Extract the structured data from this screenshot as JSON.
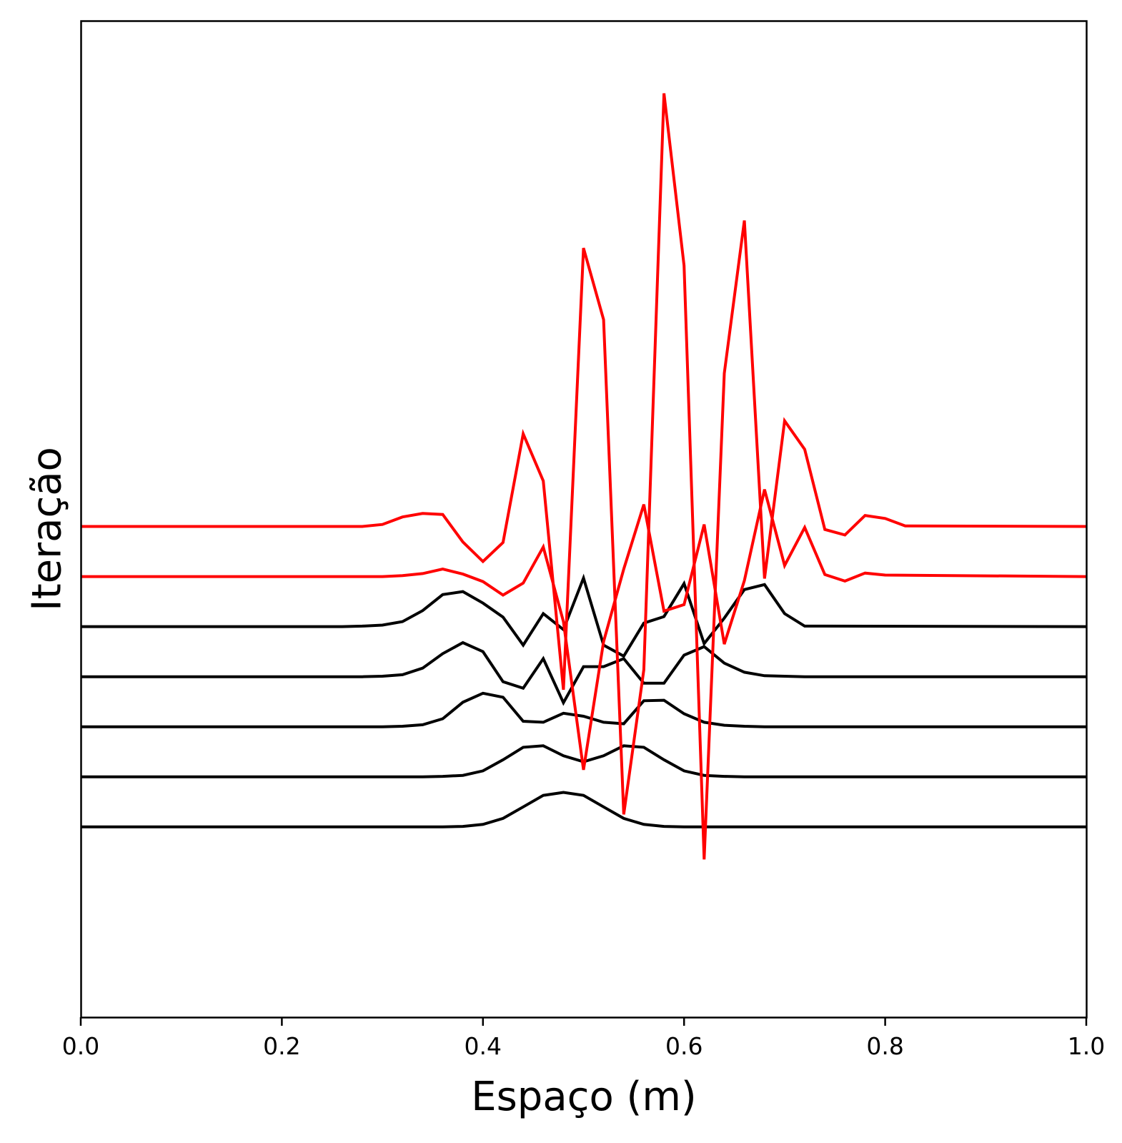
{
  "chart_data": {
    "type": "line",
    "title": "",
    "xlabel": "Espaço (m)",
    "ylabel": "Iteração",
    "xlim": [
      0.0,
      1.0
    ],
    "ylim": [
      -3.8,
      16.1
    ],
    "xticks": [
      0.0,
      0.2,
      0.4,
      0.6,
      0.8,
      1.0
    ],
    "xtick_labels": [
      "0.0",
      "0.2",
      "0.4",
      "0.6",
      "0.8",
      "1.0"
    ],
    "yticks_visible": false,
    "grid": false,
    "legend": "none",
    "x": [
      0.0,
      0.02,
      0.04,
      0.06,
      0.08,
      0.1,
      0.12,
      0.14,
      0.16,
      0.18,
      0.2,
      0.22,
      0.24,
      0.26,
      0.28,
      0.3,
      0.32,
      0.34,
      0.36,
      0.38,
      0.4,
      0.42,
      0.44,
      0.46,
      0.48,
      0.5,
      0.52,
      0.54,
      0.56,
      0.58,
      0.6,
      0.62,
      0.64,
      0.66,
      0.68,
      0.7,
      0.72,
      0.74,
      0.76,
      0.78,
      0.8,
      0.82,
      0.84,
      0.86,
      0.88,
      0.9,
      0.92,
      0.94,
      0.96,
      0.98,
      1.0
    ],
    "series": [
      {
        "color": "#000000",
        "values": [
          0,
          0,
          0,
          0,
          0,
          0,
          0,
          0,
          0,
          0,
          0,
          0,
          0,
          0,
          0,
          0,
          0,
          0,
          0,
          0,
          0,
          0,
          0,
          0,
          0,
          0,
          0,
          0,
          0,
          0,
          0,
          0,
          0,
          0,
          0,
          0,
          0,
          0,
          0,
          0,
          0,
          0,
          0,
          0,
          0,
          0,
          0,
          0,
          0,
          0,
          0
        ]
      },
      {
        "color": "#000000",
        "values": [
          1,
          1,
          1,
          1,
          1,
          1,
          1,
          1,
          1,
          1,
          1,
          1,
          1,
          1,
          1,
          1,
          1,
          1,
          1,
          1,
          1,
          1,
          1,
          1,
          1,
          1,
          1,
          1,
          1,
          1,
          1,
          1,
          1,
          1,
          1,
          1,
          1,
          1,
          1,
          1,
          1,
          1,
          1,
          1,
          1,
          1,
          1,
          1,
          1,
          1,
          1
        ]
      },
      {
        "color": "#000000",
        "values": [
          2,
          2,
          2,
          2,
          2,
          2,
          2,
          2,
          2,
          2,
          2,
          2,
          2,
          2,
          2,
          2,
          2,
          2,
          2,
          2,
          2,
          2,
          2,
          2,
          2,
          2,
          2,
          2,
          2,
          2,
          2,
          2,
          2,
          2,
          2,
          2,
          2,
          2,
          2,
          2,
          2,
          2,
          2,
          2,
          2,
          2,
          2,
          2,
          2,
          2,
          2
        ]
      },
      {
        "color": "#000000",
        "values": [
          3,
          3,
          3,
          3,
          3,
          3,
          3,
          3,
          3,
          3,
          3,
          3,
          3,
          3,
          3,
          3,
          3,
          3,
          3,
          3,
          3,
          3,
          3,
          3,
          3,
          3,
          3,
          3,
          3,
          3,
          3,
          3,
          3,
          3,
          3,
          3,
          3,
          3,
          3,
          3,
          3,
          3,
          3,
          3,
          3,
          3,
          3,
          3,
          3,
          3,
          3
        ]
      },
      {
        "color": "#000000",
        "values": [
          4,
          4,
          4,
          4,
          4,
          4,
          4,
          4,
          4,
          4,
          4,
          4,
          4,
          4,
          4,
          4,
          4,
          4,
          4,
          4,
          4,
          4,
          4,
          4,
          4,
          4,
          4,
          4,
          4,
          4,
          4,
          4,
          4,
          4,
          4,
          4,
          4,
          4,
          4,
          4,
          4,
          4,
          4,
          4,
          4,
          4,
          4,
          4,
          4,
          4,
          4
        ]
      },
      {
        "color": "#ff0000",
        "values": [
          5,
          5,
          5,
          5,
          5,
          5,
          5,
          5,
          5,
          5,
          5,
          5,
          5,
          5,
          5,
          5,
          5,
          5,
          5,
          5,
          5,
          5,
          5,
          5,
          5,
          5,
          5,
          5,
          5,
          5,
          5,
          5,
          5,
          5,
          5,
          5,
          5,
          5,
          5,
          5,
          5,
          5,
          5,
          5,
          5,
          5,
          5,
          5,
          5,
          5,
          5
        ]
      },
      {
        "color": "#ff0000",
        "values": [
          6,
          6,
          6,
          6,
          6,
          6,
          6,
          6,
          6,
          6,
          6,
          6,
          6,
          6,
          6,
          6,
          6,
          6,
          6,
          6,
          6,
          6,
          6,
          6,
          6,
          6,
          6,
          6,
          6,
          6,
          6,
          6,
          6,
          6,
          6,
          6,
          6,
          6,
          6,
          6,
          6,
          6,
          6,
          6,
          6,
          6,
          6,
          6,
          6,
          6,
          6
        ]
      }
    ],
    "series_overrides": [
      {
        "x": [
          0.0,
          0.36,
          0.38,
          0.4,
          0.42,
          0.44,
          0.46,
          0.48,
          0.5,
          0.52,
          0.54,
          0.56,
          0.58,
          0.6,
          0.62,
          0.64,
          1.0
        ],
        "values": [
          0,
          0,
          0.01,
          0.05,
          0.17,
          0.4,
          0.63,
          0.69,
          0.63,
          0.4,
          0.17,
          0.05,
          0.01,
          0,
          0,
          0,
          0
        ]
      },
      {
        "x": [
          0.0,
          0.34,
          0.36,
          0.38,
          0.4,
          0.42,
          0.44,
          0.46,
          0.48,
          0.5,
          0.52,
          0.54,
          0.56,
          0.58,
          0.6,
          0.62,
          0.64,
          0.66,
          1.0
        ],
        "values": [
          1,
          1,
          1.01,
          1.03,
          1.12,
          1.34,
          1.59,
          1.62,
          1.42,
          1.3,
          1.42,
          1.62,
          1.59,
          1.34,
          1.12,
          1.03,
          1.01,
          1,
          1
        ]
      },
      {
        "x": [
          0.0,
          0.3,
          0.32,
          0.34,
          0.36,
          0.38,
          0.4,
          0.42,
          0.44,
          0.46,
          0.48,
          0.5,
          0.52,
          0.54,
          0.56,
          0.58,
          0.6,
          0.62,
          0.64,
          0.66,
          0.68,
          0.7,
          1.0
        ],
        "values": [
          2,
          2,
          2.01,
          2.04,
          2.16,
          2.49,
          2.67,
          2.59,
          2.11,
          2.09,
          2.27,
          2.21,
          2.09,
          2.06,
          2.52,
          2.53,
          2.26,
          2.09,
          2.03,
          2.01,
          2,
          2,
          2
        ]
      },
      {
        "x": [
          0.0,
          0.28,
          0.3,
          0.32,
          0.34,
          0.36,
          0.38,
          0.4,
          0.42,
          0.44,
          0.46,
          0.48,
          0.5,
          0.52,
          0.54,
          0.56,
          0.58,
          0.6,
          0.62,
          0.64,
          0.66,
          0.68,
          0.7,
          0.72,
          1.0
        ],
        "values": [
          3,
          3,
          3.01,
          3.04,
          3.17,
          3.46,
          3.68,
          3.5,
          2.9,
          2.77,
          3.36,
          2.48,
          3.2,
          3.2,
          3.36,
          2.87,
          2.87,
          3.43,
          3.6,
          3.27,
          3.09,
          3.02,
          3.01,
          3,
          3
        ]
      },
      {
        "x": [
          0.0,
          0.26,
          0.28,
          0.3,
          0.32,
          0.34,
          0.36,
          0.38,
          0.4,
          0.42,
          0.44,
          0.46,
          0.48,
          0.5,
          0.52,
          0.54,
          0.56,
          0.58,
          0.6,
          0.62,
          0.64,
          0.66,
          0.68,
          0.7,
          0.72,
          0.74,
          1.0
        ],
        "values": [
          4,
          4,
          4.01,
          4.03,
          4.1,
          4.32,
          4.64,
          4.7,
          4.47,
          4.19,
          3.63,
          4.26,
          3.94,
          4.97,
          3.63,
          3.41,
          4.07,
          4.2,
          4.86,
          3.66,
          4.17,
          4.74,
          4.84,
          4.26,
          4.01,
          4.01,
          4
        ]
      },
      {
        "x": [
          0.0,
          0.3,
          0.32,
          0.34,
          0.36,
          0.38,
          0.4,
          0.42,
          0.44,
          0.46,
          0.48,
          0.5,
          0.52,
          0.54,
          0.56,
          0.58,
          0.6,
          0.62,
          0.64,
          0.66,
          0.68,
          0.7,
          0.72,
          0.74,
          0.76,
          0.78,
          0.8,
          1.0
        ],
        "values": [
          5,
          5,
          5.02,
          5.06,
          5.15,
          5.05,
          4.9,
          4.63,
          4.87,
          5.59,
          4.1,
          1.14,
          3.7,
          5.15,
          6.44,
          4.31,
          4.44,
          6.04,
          3.65,
          4.92,
          6.74,
          5.22,
          5.98,
          5.04,
          4.91,
          5.07,
          5.03,
          5
        ]
      },
      {
        "x": [
          0.0,
          0.28,
          0.3,
          0.32,
          0.34,
          0.36,
          0.38,
          0.4,
          0.42,
          0.44,
          0.46,
          0.48,
          0.5,
          0.52,
          0.54,
          0.56,
          0.58,
          0.6,
          0.62,
          0.64,
          0.66,
          0.68,
          0.7,
          0.72,
          0.74,
          0.76,
          0.78,
          0.8,
          0.82,
          1.0
        ],
        "values": [
          6,
          6,
          6.04,
          6.19,
          6.26,
          6.24,
          5.69,
          5.3,
          5.68,
          7.85,
          6.91,
          2.74,
          11.56,
          10.13,
          0.25,
          3.14,
          14.65,
          11.21,
          -0.65,
          9.06,
          12.11,
          4.96,
          8.11,
          7.54,
          5.94,
          5.83,
          6.22,
          6.16,
          6.01,
          6
        ]
      }
    ]
  }
}
